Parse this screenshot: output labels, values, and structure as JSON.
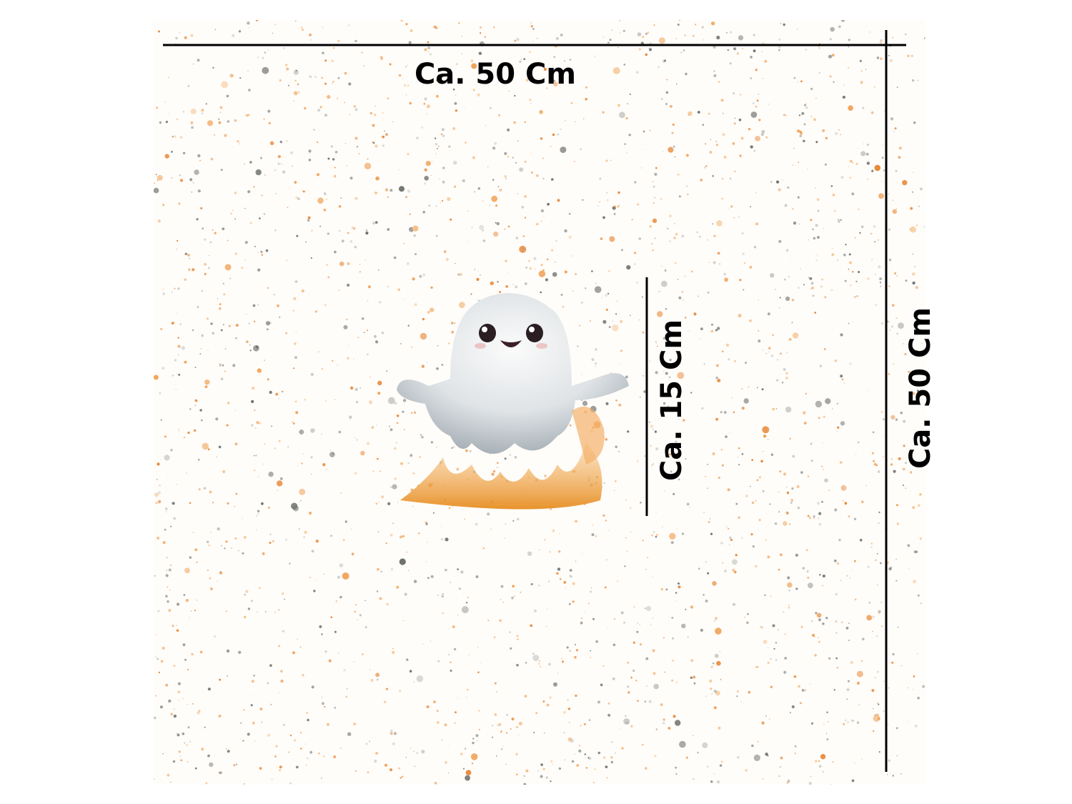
{
  "dimensions": {
    "width_label": "Ca. 50 Cm",
    "motif_height_label": "Ca. 15 Cm",
    "height_label": "Ca. 50 Cm"
  }
}
